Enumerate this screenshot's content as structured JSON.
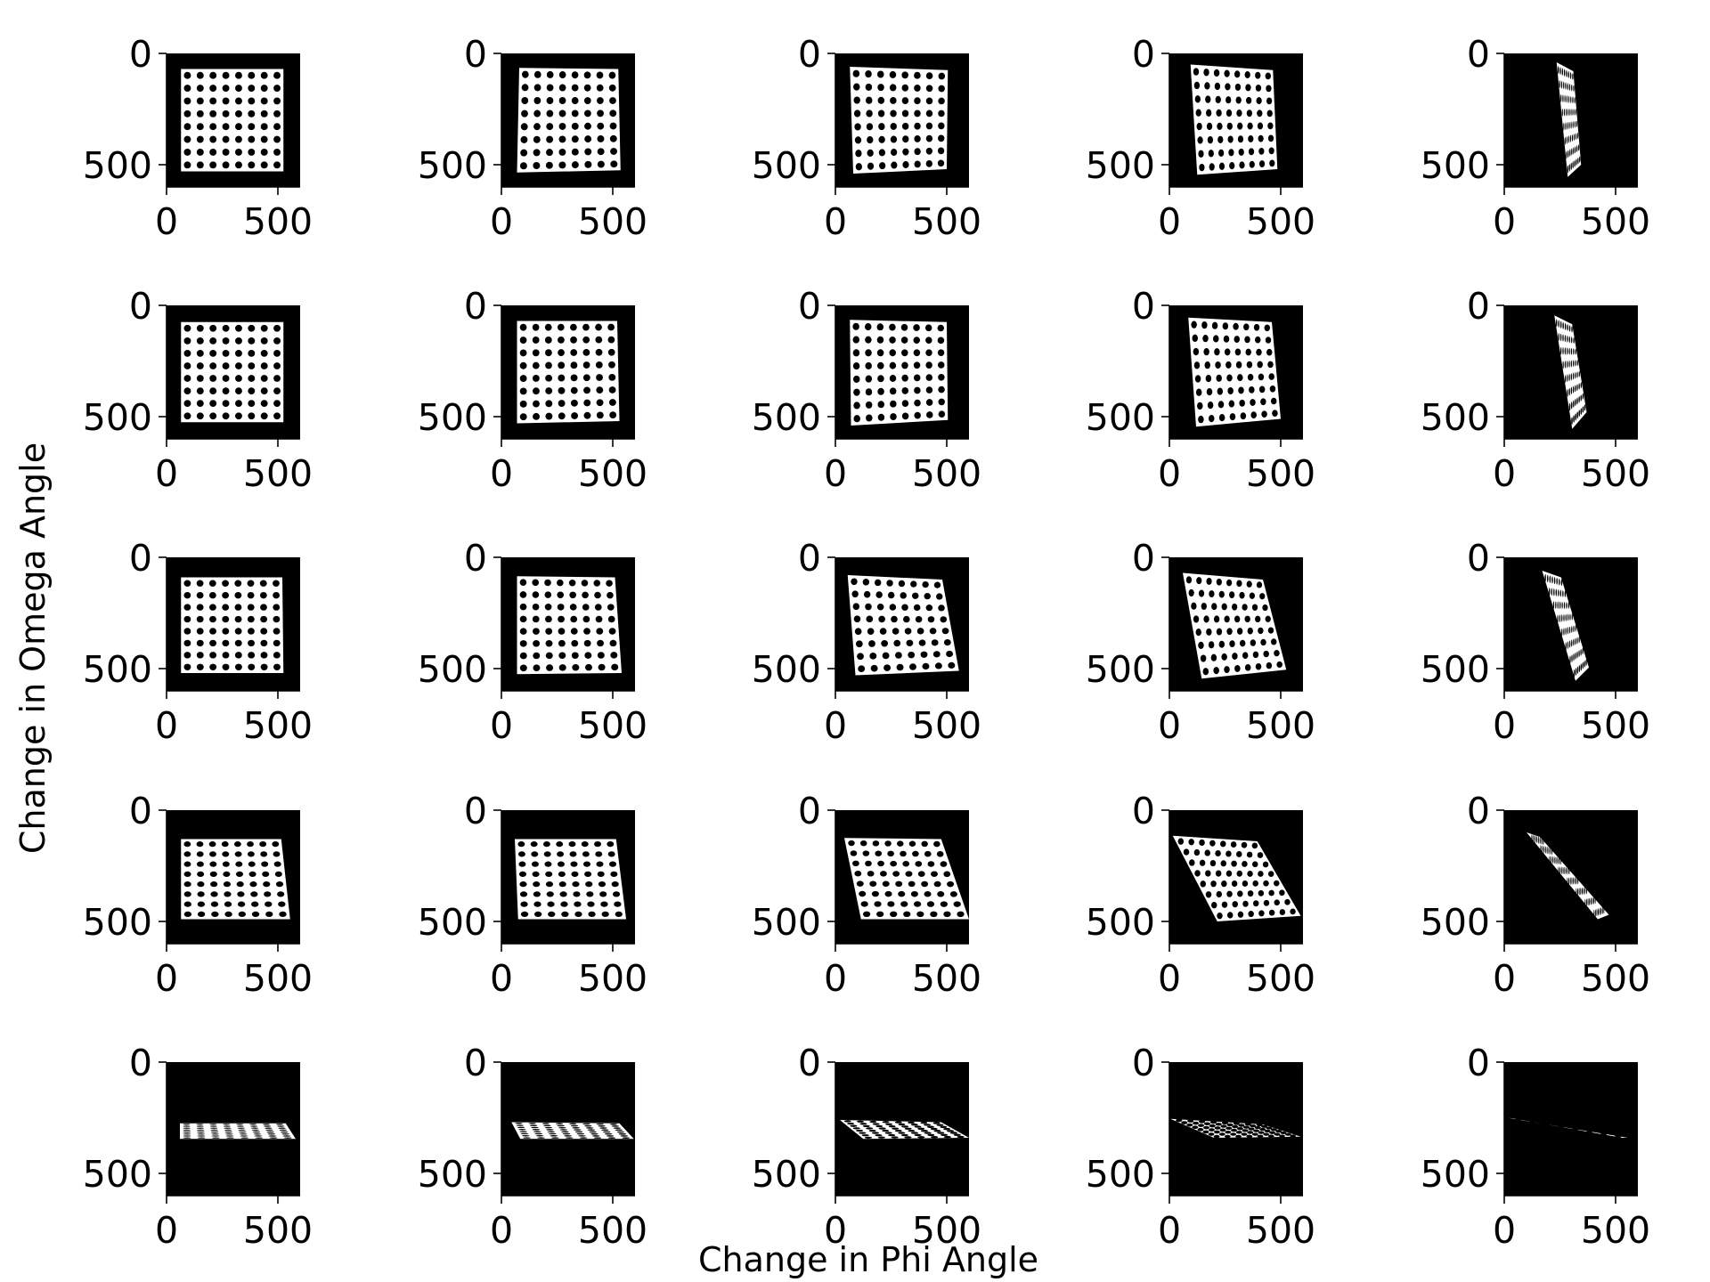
{
  "figure": {
    "xlabel": "Change in Phi Angle",
    "ylabel": "Change in Omega Angle"
  },
  "chart_data": {
    "type": "image-grid",
    "rows": 5,
    "cols": 5,
    "panel_xlim": [
      0,
      600
    ],
    "panel_ylim": [
      600,
      0
    ],
    "x_ticks": [
      0,
      500
    ],
    "y_ticks": [
      0,
      500
    ],
    "x_tick_labels": [
      "0",
      "500"
    ],
    "y_tick_labels": [
      "0",
      "500"
    ],
    "background_color": "#000000",
    "pattern_color": "#ffffff",
    "dot_grid": [
      8,
      8
    ],
    "panels": [
      [
        {
          "corners": [
            [
              65,
              70
            ],
            [
              525,
              70
            ],
            [
              525,
              530
            ],
            [
              65,
              530
            ]
          ]
        },
        {
          "corners": [
            [
              80,
              65
            ],
            [
              525,
              70
            ],
            [
              535,
              525
            ],
            [
              70,
              535
            ]
          ]
        },
        {
          "corners": [
            [
              65,
              60
            ],
            [
              505,
              75
            ],
            [
              500,
              520
            ],
            [
              80,
              540
            ]
          ]
        },
        {
          "corners": [
            [
              95,
              50
            ],
            [
              465,
              75
            ],
            [
              485,
              520
            ],
            [
              125,
              545
            ]
          ]
        },
        {
          "corners": [
            [
              235,
              40
            ],
            [
              310,
              80
            ],
            [
              345,
              500
            ],
            [
              285,
              555
            ]
          ]
        }
      ],
      [
        {
          "corners": [
            [
              65,
              75
            ],
            [
              525,
              75
            ],
            [
              525,
              525
            ],
            [
              65,
              525
            ]
          ]
        },
        {
          "corners": [
            [
              70,
              70
            ],
            [
              520,
              70
            ],
            [
              530,
              520
            ],
            [
              70,
              530
            ]
          ]
        },
        {
          "corners": [
            [
              65,
              65
            ],
            [
              500,
              75
            ],
            [
              505,
              515
            ],
            [
              70,
              540
            ]
          ]
        },
        {
          "corners": [
            [
              85,
              55
            ],
            [
              460,
              75
            ],
            [
              500,
              510
            ],
            [
              120,
              545
            ]
          ]
        },
        {
          "corners": [
            [
              225,
              45
            ],
            [
              305,
              85
            ],
            [
              370,
              480
            ],
            [
              305,
              555
            ]
          ]
        }
      ],
      [
        {
          "corners": [
            [
              65,
              90
            ],
            [
              520,
              90
            ],
            [
              525,
              520
            ],
            [
              65,
              520
            ]
          ]
        },
        {
          "corners": [
            [
              70,
              85
            ],
            [
              510,
              90
            ],
            [
              540,
              520
            ],
            [
              70,
              525
            ]
          ]
        },
        {
          "corners": [
            [
              55,
              80
            ],
            [
              480,
              100
            ],
            [
              555,
              510
            ],
            [
              90,
              530
            ]
          ]
        },
        {
          "corners": [
            [
              60,
              70
            ],
            [
              420,
              100
            ],
            [
              525,
              505
            ],
            [
              145,
              545
            ]
          ]
        },
        {
          "corners": [
            [
              170,
              60
            ],
            [
              255,
              90
            ],
            [
              380,
              495
            ],
            [
              320,
              555
            ]
          ]
        }
      ],
      [
        {
          "corners": [
            [
              65,
              130
            ],
            [
              515,
              130
            ],
            [
              555,
              490
            ],
            [
              65,
              490
            ]
          ]
        },
        {
          "corners": [
            [
              60,
              130
            ],
            [
              515,
              130
            ],
            [
              560,
              490
            ],
            [
              75,
              490
            ]
          ]
        },
        {
          "corners": [
            [
              40,
              125
            ],
            [
              475,
              130
            ],
            [
              600,
              490
            ],
            [
              115,
              490
            ]
          ]
        },
        {
          "corners": [
            [
              15,
              115
            ],
            [
              395,
              140
            ],
            [
              590,
              475
            ],
            [
              215,
              500
            ]
          ]
        },
        {
          "corners": [
            [
              100,
              100
            ],
            [
              160,
              120
            ],
            [
              470,
              470
            ],
            [
              420,
              490
            ]
          ]
        }
      ],
      [
        {
          "corners": [
            [
              60,
              275
            ],
            [
              535,
              275
            ],
            [
              580,
              345
            ],
            [
              60,
              345
            ]
          ]
        },
        {
          "corners": [
            [
              45,
              270
            ],
            [
              530,
              275
            ],
            [
              595,
              345
            ],
            [
              85,
              345
            ]
          ]
        },
        {
          "corners": [
            [
              20,
              260
            ],
            [
              475,
              270
            ],
            [
              600,
              340
            ],
            [
              125,
              345
            ]
          ]
        },
        {
          "corners": [
            [
              5,
              255
            ],
            [
              420,
              280
            ],
            [
              590,
              335
            ],
            [
              200,
              340
            ]
          ]
        },
        {
          "corners": [
            [
              20,
              250
            ],
            [
              40,
              255
            ],
            [
              555,
              340
            ],
            [
              530,
              340
            ]
          ]
        }
      ]
    ]
  }
}
